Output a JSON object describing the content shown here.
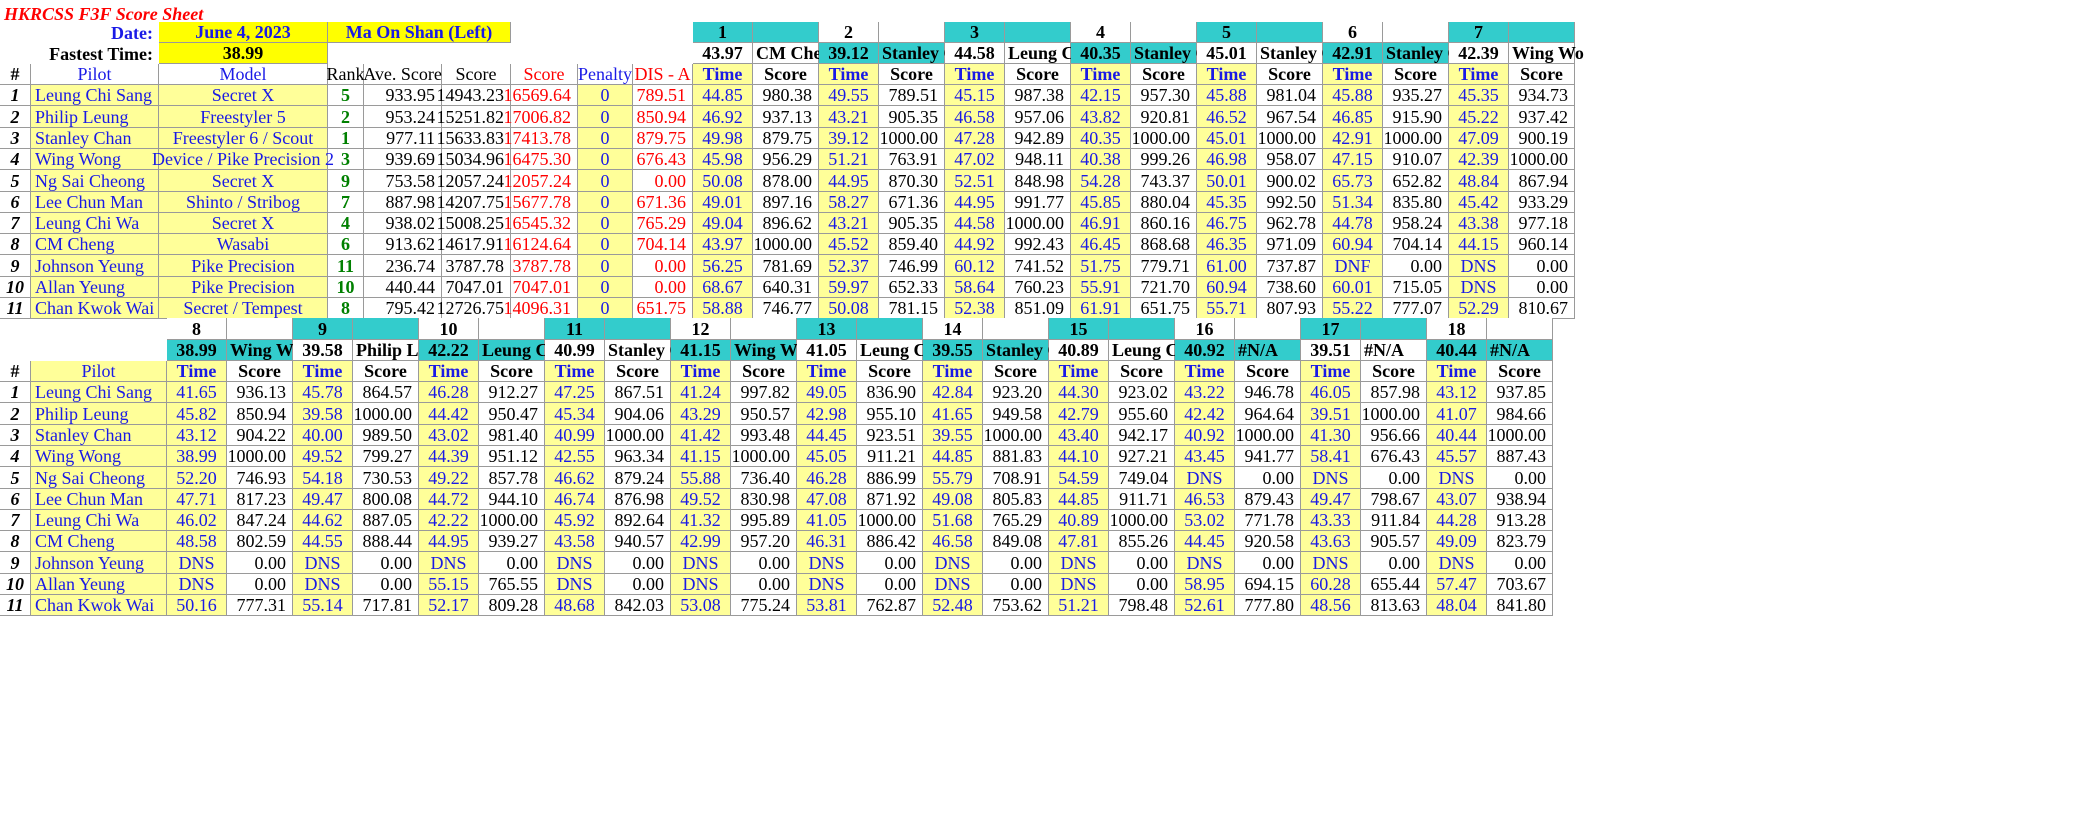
{
  "title": "HKRCSS F3F Score Sheet",
  "date_label": "Date:",
  "date": "June 4, 2023",
  "venue": "Ma On Shan (Left)",
  "fastest_label": "Fastest Time:",
  "fastest_time": "38.99",
  "summary_headers": [
    "#",
    "Pilot",
    "Model",
    "Rank",
    "Ave. Score",
    "Score",
    "Score",
    "Penalty",
    "DIS - A"
  ],
  "time_label": "Time",
  "score_label": "Score",
  "pilots": [
    {
      "n": "1",
      "name": "Leung Chi Sang",
      "model": "Secret X",
      "rank": "5",
      "ave": "933.95",
      "score": "14943.23",
      "score2": "16569.64",
      "penalty": "0",
      "dis": "789.51"
    },
    {
      "n": "2",
      "name": "Philip Leung",
      "model": "Freestyler 5",
      "rank": "2",
      "ave": "953.24",
      "score": "15251.82",
      "score2": "17006.82",
      "penalty": "0",
      "dis": "850.94"
    },
    {
      "n": "3",
      "name": "Stanley Chan",
      "model": "Freestyler 6 / Scout",
      "rank": "1",
      "ave": "977.11",
      "score": "15633.83",
      "score2": "17413.78",
      "penalty": "0",
      "dis": "879.75"
    },
    {
      "n": "4",
      "name": "Wing Wong",
      "model": "Device / Pike Precision 2",
      "rank": "3",
      "ave": "939.69",
      "score": "15034.96",
      "score2": "16475.30",
      "penalty": "0",
      "dis": "676.43"
    },
    {
      "n": "5",
      "name": "Ng Sai Cheong",
      "model": "Secret X",
      "rank": "9",
      "ave": "753.58",
      "score": "12057.24",
      "score2": "12057.24",
      "penalty": "0",
      "dis": "0.00"
    },
    {
      "n": "6",
      "name": "Lee Chun Man",
      "model": "Shinto / Stribog",
      "rank": "7",
      "ave": "887.98",
      "score": "14207.75",
      "score2": "15677.78",
      "penalty": "0",
      "dis": "671.36"
    },
    {
      "n": "7",
      "name": "Leung Chi Wa",
      "model": "Secret X",
      "rank": "4",
      "ave": "938.02",
      "score": "15008.25",
      "score2": "16545.32",
      "penalty": "0",
      "dis": "765.29"
    },
    {
      "n": "8",
      "name": "CM Cheng",
      "model": "Wasabi",
      "rank": "6",
      "ave": "913.62",
      "score": "14617.91",
      "score2": "16124.64",
      "penalty": "0",
      "dis": "704.14"
    },
    {
      "n": "9",
      "name": "Johnson Yeung",
      "model": "Pike Precision",
      "rank": "11",
      "ave": "236.74",
      "score": "3787.78",
      "score2": "3787.78",
      "penalty": "0",
      "dis": "0.00"
    },
    {
      "n": "10",
      "name": "Allan Yeung",
      "model": "Pike Precision",
      "rank": "10",
      "ave": "440.44",
      "score": "7047.01",
      "score2": "7047.01",
      "penalty": "0",
      "dis": "0.00"
    },
    {
      "n": "11",
      "name": "Chan Kwok Wai",
      "model": "Secret / Tempest",
      "rank": "8",
      "ave": "795.42",
      "score": "12726.75",
      "score2": "14096.31",
      "penalty": "0",
      "dis": "651.75"
    }
  ],
  "top_rounds": [
    {
      "num": "1",
      "best": "43.97",
      "leader": "CM Chen"
    },
    {
      "num": "2",
      "best": "39.12",
      "leader": "Stanley C"
    },
    {
      "num": "3",
      "best": "44.58",
      "leader": "Leung Ch"
    },
    {
      "num": "4",
      "best": "40.35",
      "leader": "Stanley C"
    },
    {
      "num": "5",
      "best": "45.01",
      "leader": "Stanley C"
    },
    {
      "num": "6",
      "best": "42.91",
      "leader": "Stanley C"
    },
    {
      "num": "7",
      "best": "42.39",
      "leader": "Wing Wo"
    }
  ],
  "bottom_pilots": [
    "Leung Chi Sang",
    "Philip Leung",
    "Stanley Chan",
    "Wing Wong",
    "Ng Sai Cheong",
    "Lee Chun Man",
    "Leung Chi Wa",
    "CM Cheng",
    "Johnson Yeung",
    "Allan Yeung",
    "Chan Kwok Wai"
  ],
  "bottom_nums": [
    "1",
    "2",
    "3",
    "4",
    "5",
    "6",
    "7",
    "8",
    "9",
    "10",
    "11"
  ],
  "bottom_rounds": [
    {
      "num": "8",
      "best": "38.99",
      "leader": "Wing Wo"
    },
    {
      "num": "9",
      "best": "39.58",
      "leader": "Philip Le"
    },
    {
      "num": "10",
      "best": "42.22",
      "leader": "Leung Ch"
    },
    {
      "num": "11",
      "best": "40.99",
      "leader": "Stanley C"
    },
    {
      "num": "12",
      "best": "41.15",
      "leader": "Wing Wo"
    },
    {
      "num": "13",
      "best": "41.05",
      "leader": "Leung Ch"
    },
    {
      "num": "14",
      "best": "39.55",
      "leader": "Stanley C"
    },
    {
      "num": "15",
      "best": "40.89",
      "leader": "Leung Ch"
    },
    {
      "num": "16",
      "best": "40.92",
      "leader": "#N/A"
    },
    {
      "num": "17",
      "best": "39.51",
      "leader": "#N/A"
    },
    {
      "num": "18",
      "best": "40.44",
      "leader": "#N/A"
    }
  ],
  "top_results": [
    [
      [
        "44.85",
        "980.38"
      ],
      [
        "49.55",
        "789.51"
      ],
      [
        "45.15",
        "987.38"
      ],
      [
        "42.15",
        "957.30"
      ],
      [
        "45.88",
        "981.04"
      ],
      [
        "45.88",
        "935.27"
      ],
      [
        "45.35",
        "934.73"
      ]
    ],
    [
      [
        "46.92",
        "937.13"
      ],
      [
        "43.21",
        "905.35"
      ],
      [
        "46.58",
        "957.06"
      ],
      [
        "43.82",
        "920.81"
      ],
      [
        "46.52",
        "967.54"
      ],
      [
        "46.85",
        "915.90"
      ],
      [
        "45.22",
        "937.42"
      ]
    ],
    [
      [
        "49.98",
        "879.75"
      ],
      [
        "39.12",
        "1000.00"
      ],
      [
        "47.28",
        "942.89"
      ],
      [
        "40.35",
        "1000.00"
      ],
      [
        "45.01",
        "1000.00"
      ],
      [
        "42.91",
        "1000.00"
      ],
      [
        "47.09",
        "900.19"
      ]
    ],
    [
      [
        "45.98",
        "956.29"
      ],
      [
        "51.21",
        "763.91"
      ],
      [
        "47.02",
        "948.11"
      ],
      [
        "40.38",
        "999.26"
      ],
      [
        "46.98",
        "958.07"
      ],
      [
        "47.15",
        "910.07"
      ],
      [
        "42.39",
        "1000.00"
      ]
    ],
    [
      [
        "50.08",
        "878.00"
      ],
      [
        "44.95",
        "870.30"
      ],
      [
        "52.51",
        "848.98"
      ],
      [
        "54.28",
        "743.37"
      ],
      [
        "50.01",
        "900.02"
      ],
      [
        "65.73",
        "652.82"
      ],
      [
        "48.84",
        "867.94"
      ]
    ],
    [
      [
        "49.01",
        "897.16"
      ],
      [
        "58.27",
        "671.36"
      ],
      [
        "44.95",
        "991.77"
      ],
      [
        "45.85",
        "880.04"
      ],
      [
        "45.35",
        "992.50"
      ],
      [
        "51.34",
        "835.80"
      ],
      [
        "45.42",
        "933.29"
      ]
    ],
    [
      [
        "49.04",
        "896.62"
      ],
      [
        "43.21",
        "905.35"
      ],
      [
        "44.58",
        "1000.00"
      ],
      [
        "46.91",
        "860.16"
      ],
      [
        "46.75",
        "962.78"
      ],
      [
        "44.78",
        "958.24"
      ],
      [
        "43.38",
        "977.18"
      ]
    ],
    [
      [
        "43.97",
        "1000.00"
      ],
      [
        "45.52",
        "859.40"
      ],
      [
        "44.92",
        "992.43"
      ],
      [
        "46.45",
        "868.68"
      ],
      [
        "46.35",
        "971.09"
      ],
      [
        "60.94",
        "704.14"
      ],
      [
        "44.15",
        "960.14"
      ]
    ],
    [
      [
        "56.25",
        "781.69"
      ],
      [
        "52.37",
        "746.99"
      ],
      [
        "60.12",
        "741.52"
      ],
      [
        "51.75",
        "779.71"
      ],
      [
        "61.00",
        "737.87"
      ],
      [
        "DNF",
        "0.00"
      ],
      [
        "DNS",
        "0.00"
      ]
    ],
    [
      [
        "68.67",
        "640.31"
      ],
      [
        "59.97",
        "652.33"
      ],
      [
        "58.64",
        "760.23"
      ],
      [
        "55.91",
        "721.70"
      ],
      [
        "60.94",
        "738.60"
      ],
      [
        "60.01",
        "715.05"
      ],
      [
        "DNS",
        "0.00"
      ]
    ],
    [
      [
        "58.88",
        "746.77"
      ],
      [
        "50.08",
        "781.15"
      ],
      [
        "52.38",
        "851.09"
      ],
      [
        "61.91",
        "651.75"
      ],
      [
        "55.71",
        "807.93"
      ],
      [
        "55.22",
        "777.07"
      ],
      [
        "52.29",
        "810.67"
      ]
    ]
  ],
  "bottom_results": [
    [
      [
        "41.65",
        "936.13"
      ],
      [
        "45.78",
        "864.57"
      ],
      [
        "46.28",
        "912.27"
      ],
      [
        "47.25",
        "867.51"
      ],
      [
        "41.24",
        "997.82"
      ],
      [
        "49.05",
        "836.90"
      ],
      [
        "42.84",
        "923.20"
      ],
      [
        "44.30",
        "923.02"
      ],
      [
        "43.22",
        "946.78"
      ],
      [
        "46.05",
        "857.98"
      ],
      [
        "43.12",
        "937.85"
      ]
    ],
    [
      [
        "45.82",
        "850.94"
      ],
      [
        "39.58",
        "1000.00"
      ],
      [
        "44.42",
        "950.47"
      ],
      [
        "45.34",
        "904.06"
      ],
      [
        "43.29",
        "950.57"
      ],
      [
        "42.98",
        "955.10"
      ],
      [
        "41.65",
        "949.58"
      ],
      [
        "42.79",
        "955.60"
      ],
      [
        "42.42",
        "964.64"
      ],
      [
        "39.51",
        "1000.00"
      ],
      [
        "41.07",
        "984.66"
      ]
    ],
    [
      [
        "43.12",
        "904.22"
      ],
      [
        "40.00",
        "989.50"
      ],
      [
        "43.02",
        "981.40"
      ],
      [
        "40.99",
        "1000.00"
      ],
      [
        "41.42",
        "993.48"
      ],
      [
        "44.45",
        "923.51"
      ],
      [
        "39.55",
        "1000.00"
      ],
      [
        "43.40",
        "942.17"
      ],
      [
        "40.92",
        "1000.00"
      ],
      [
        "41.30",
        "956.66"
      ],
      [
        "40.44",
        "1000.00"
      ]
    ],
    [
      [
        "38.99",
        "1000.00"
      ],
      [
        "49.52",
        "799.27"
      ],
      [
        "44.39",
        "951.12"
      ],
      [
        "42.55",
        "963.34"
      ],
      [
        "41.15",
        "1000.00"
      ],
      [
        "45.05",
        "911.21"
      ],
      [
        "44.85",
        "881.83"
      ],
      [
        "44.10",
        "927.21"
      ],
      [
        "43.45",
        "941.77"
      ],
      [
        "58.41",
        "676.43"
      ],
      [
        "45.57",
        "887.43"
      ]
    ],
    [
      [
        "52.20",
        "746.93"
      ],
      [
        "54.18",
        "730.53"
      ],
      [
        "49.22",
        "857.78"
      ],
      [
        "46.62",
        "879.24"
      ],
      [
        "55.88",
        "736.40"
      ],
      [
        "46.28",
        "886.99"
      ],
      [
        "55.79",
        "708.91"
      ],
      [
        "54.59",
        "749.04"
      ],
      [
        "DNS",
        "0.00"
      ],
      [
        "DNS",
        "0.00"
      ],
      [
        "DNS",
        "0.00"
      ]
    ],
    [
      [
        "47.71",
        "817.23"
      ],
      [
        "49.47",
        "800.08"
      ],
      [
        "44.72",
        "944.10"
      ],
      [
        "46.74",
        "876.98"
      ],
      [
        "49.52",
        "830.98"
      ],
      [
        "47.08",
        "871.92"
      ],
      [
        "49.08",
        "805.83"
      ],
      [
        "44.85",
        "911.71"
      ],
      [
        "46.53",
        "879.43"
      ],
      [
        "49.47",
        "798.67"
      ],
      [
        "43.07",
        "938.94"
      ]
    ],
    [
      [
        "46.02",
        "847.24"
      ],
      [
        "44.62",
        "887.05"
      ],
      [
        "42.22",
        "1000.00"
      ],
      [
        "45.92",
        "892.64"
      ],
      [
        "41.32",
        "995.89"
      ],
      [
        "41.05",
        "1000.00"
      ],
      [
        "51.68",
        "765.29"
      ],
      [
        "40.89",
        "1000.00"
      ],
      [
        "53.02",
        "771.78"
      ],
      [
        "43.33",
        "911.84"
      ],
      [
        "44.28",
        "913.28"
      ]
    ],
    [
      [
        "48.58",
        "802.59"
      ],
      [
        "44.55",
        "888.44"
      ],
      [
        "44.95",
        "939.27"
      ],
      [
        "43.58",
        "940.57"
      ],
      [
        "42.99",
        "957.20"
      ],
      [
        "46.31",
        "886.42"
      ],
      [
        "46.58",
        "849.08"
      ],
      [
        "47.81",
        "855.26"
      ],
      [
        "44.45",
        "920.58"
      ],
      [
        "43.63",
        "905.57"
      ],
      [
        "49.09",
        "823.79"
      ]
    ],
    [
      [
        "DNS",
        "0.00"
      ],
      [
        "DNS",
        "0.00"
      ],
      [
        "DNS",
        "0.00"
      ],
      [
        "DNS",
        "0.00"
      ],
      [
        "DNS",
        "0.00"
      ],
      [
        "DNS",
        "0.00"
      ],
      [
        "DNS",
        "0.00"
      ],
      [
        "DNS",
        "0.00"
      ],
      [
        "DNS",
        "0.00"
      ],
      [
        "DNS",
        "0.00"
      ],
      [
        "DNS",
        "0.00"
      ]
    ],
    [
      [
        "DNS",
        "0.00"
      ],
      [
        "DNS",
        "0.00"
      ],
      [
        "55.15",
        "765.55"
      ],
      [
        "DNS",
        "0.00"
      ],
      [
        "DNS",
        "0.00"
      ],
      [
        "DNS",
        "0.00"
      ],
      [
        "DNS",
        "0.00"
      ],
      [
        "DNS",
        "0.00"
      ],
      [
        "58.95",
        "694.15"
      ],
      [
        "60.28",
        "655.44"
      ],
      [
        "57.47",
        "703.67"
      ]
    ],
    [
      [
        "50.16",
        "777.31"
      ],
      [
        "55.14",
        "717.81"
      ],
      [
        "52.17",
        "809.28"
      ],
      [
        "48.68",
        "842.03"
      ],
      [
        "53.08",
        "775.24"
      ],
      [
        "53.81",
        "762.87"
      ],
      [
        "52.48",
        "753.62"
      ],
      [
        "51.21",
        "798.48"
      ],
      [
        "52.61",
        "777.80"
      ],
      [
        "48.56",
        "813.63"
      ],
      [
        "48.04",
        "841.80"
      ]
    ]
  ]
}
